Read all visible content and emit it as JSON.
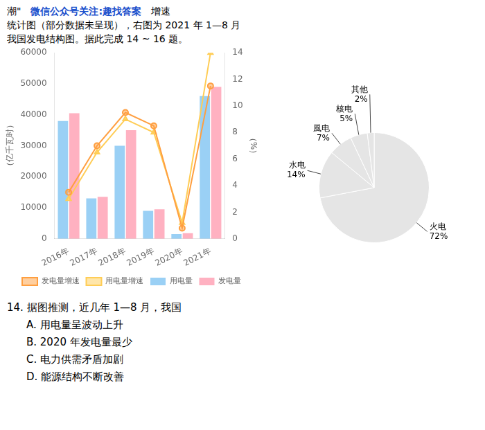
{
  "chart_data": [
    {
      "type": "bar",
      "categories": [
        "2016年",
        "2017年",
        "2018年",
        "2019年",
        "2020年",
        "2021年"
      ],
      "series": [
        {
          "name": "用电量",
          "type": "bar",
          "values": [
            38000,
            13000,
            30000,
            9000,
            1500,
            46000
          ]
        },
        {
          "name": "发电量",
          "type": "bar",
          "values": [
            40500,
            13500,
            35000,
            9500,
            1800,
            49000
          ]
        },
        {
          "name": "发电量增速",
          "type": "line",
          "axis": "y2",
          "marker": "circle",
          "line_style": "solid",
          "values": [
            3.5,
            7.0,
            9.5,
            8.5,
            0.8,
            11.5
          ]
        },
        {
          "name": "用电量增速",
          "type": "line",
          "axis": "y2",
          "marker": "triangle",
          "line_style": "solid",
          "values": [
            3.0,
            6.5,
            9.0,
            8.0,
            1.2,
            14.0
          ]
        }
      ],
      "ylabel": "（亿千瓦时）",
      "y2label": "（%）",
      "ylim": [
        0,
        60000
      ],
      "yticks": [
        0,
        10000,
        20000,
        30000,
        40000,
        50000,
        60000
      ],
      "y2lim": [
        0,
        14
      ],
      "y2ticks": [
        0,
        2,
        4,
        6,
        8,
        10,
        12,
        14
      ],
      "grid": false,
      "legend": "bottom",
      "annotations": [
        [
          {
            "text": "潮\""
          },
          {
            "text": "微信公众号关注:趣找答案",
            "color": "#1a4fcc"
          },
          {
            "text": "增速"
          }
        ],
        "统计图（部分数据未呈现），右图为 2021 年 1—8 月",
        "我国发电结构图。据此完成 14 ~ 16 题。"
      ]
    },
    {
      "type": "pie",
      "categories": [
        "火电",
        "水电",
        "風电",
        "核电",
        "其他"
      ],
      "values": [
        72,
        14,
        7,
        5,
        2
      ],
      "value_labels": [
        "72%",
        "14%",
        "7%",
        "5%",
        "2%"
      ],
      "data_labels": true,
      "annotations": [
        "14. 据图推测，近几年 1—8 月，我国",
        "A. 用电量呈波动上升",
        "B. 2020 年发电量最少",
        "C. 电力供需矛盾加剧",
        "D. 能源结构不断改善"
      ]
    }
  ]
}
